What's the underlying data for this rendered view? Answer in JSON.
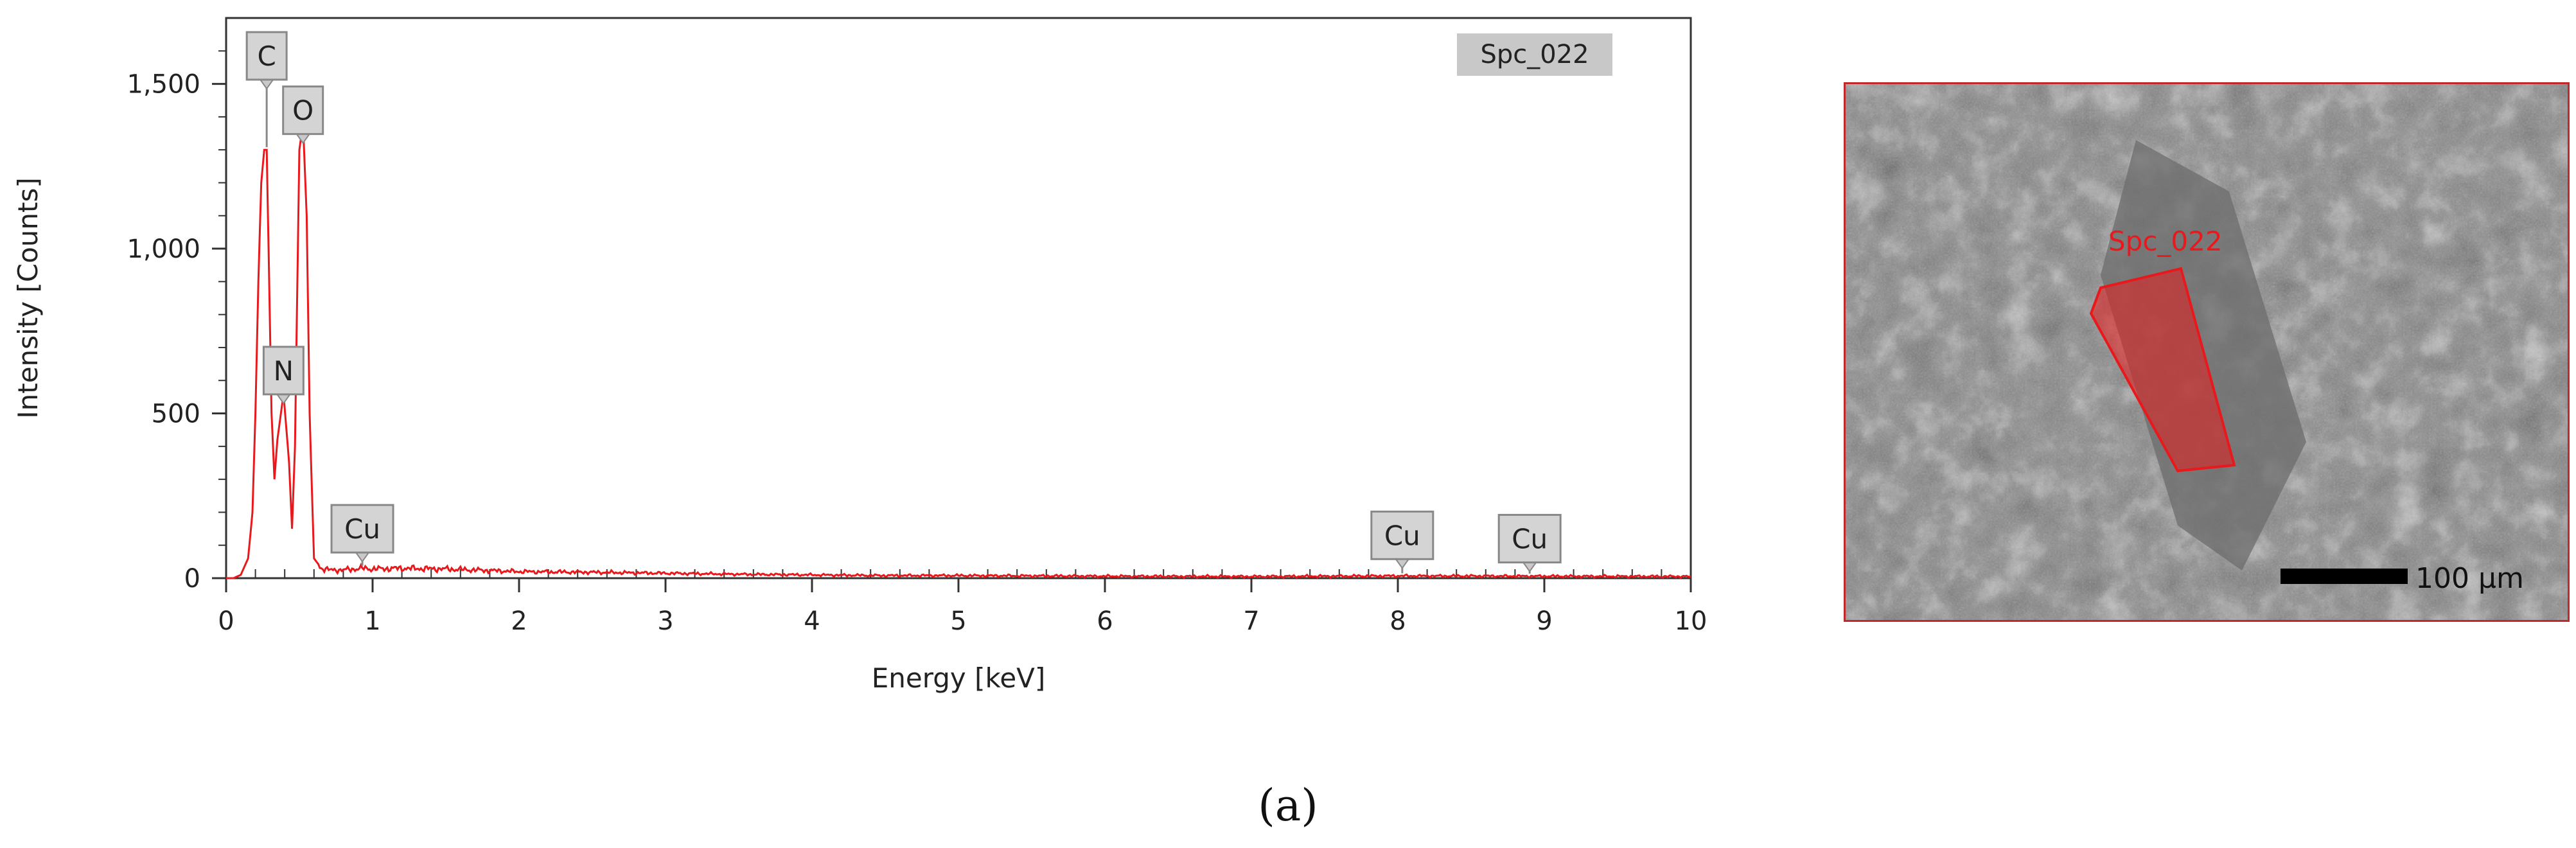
{
  "chart_data": {
    "type": "line",
    "xlabel": "Energy [keV]",
    "ylabel": "Intensity [Counts]",
    "xlim": [
      0,
      10
    ],
    "ylim": [
      0,
      1700
    ],
    "x_ticks": [
      0,
      1,
      2,
      3,
      4,
      5,
      6,
      7,
      8,
      9,
      10
    ],
    "x_tick_labels": [
      "0",
      "1",
      "2",
      "3",
      "4",
      "5",
      "6",
      "7",
      "8",
      "9",
      "10"
    ],
    "y_ticks": [
      0,
      500,
      1000,
      1500
    ],
    "y_tick_labels": [
      "0",
      "500",
      "1,000",
      "1,500"
    ],
    "grid": false,
    "line_color": "#e8191c",
    "series": [
      {
        "x": [
          0.0,
          0.05,
          0.1,
          0.15,
          0.18,
          0.2,
          0.22,
          0.24,
          0.26,
          0.277,
          0.29,
          0.31,
          0.33,
          0.35,
          0.392,
          0.43,
          0.45,
          0.47,
          0.5,
          0.525,
          0.55,
          0.57,
          0.6,
          0.65,
          0.7,
          0.8,
          0.93,
          1.0,
          1.2,
          1.5,
          2.0,
          2.5,
          3.0,
          3.5,
          4.0,
          4.5,
          5.0,
          6.0,
          7.0,
          8.0,
          9.0,
          10.0
        ],
        "y": [
          0,
          0,
          10,
          60,
          200,
          500,
          900,
          1200,
          1300,
          1300,
          1000,
          500,
          300,
          420,
          560,
          350,
          150,
          400,
          1300,
          1380,
          1100,
          500,
          60,
          30,
          25,
          25,
          30,
          28,
          30,
          28,
          20,
          18,
          15,
          12,
          10,
          8,
          8,
          6,
          5,
          7,
          6,
          5
        ]
      }
    ],
    "annotations": [
      {
        "text": "C",
        "x": 0.277,
        "y": 1300
      },
      {
        "text": "O",
        "x": 0.525,
        "y": 1380
      },
      {
        "text": "N",
        "x": 0.392,
        "y": 560
      },
      {
        "text": "Cu",
        "x": 0.93,
        "y": 30
      },
      {
        "text": "Cu",
        "x": 8.03,
        "y": 7
      },
      {
        "text": "Cu",
        "x": 8.9,
        "y": 6
      }
    ],
    "legend": {
      "label": "Spc_022",
      "placement": "top-right"
    }
  },
  "sem_image": {
    "region_label": "Spc_022",
    "scale_label": "100 µm",
    "region_color": "#e8191c"
  },
  "caption": "(a)"
}
